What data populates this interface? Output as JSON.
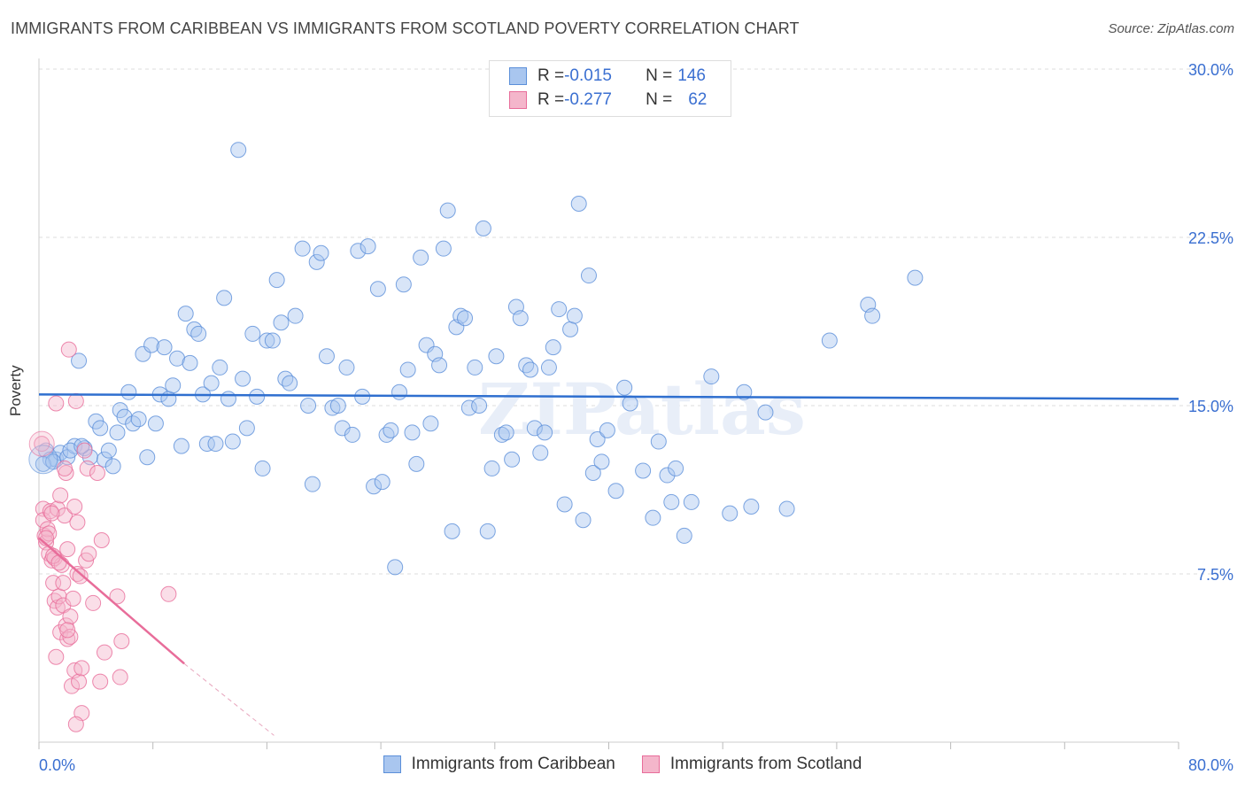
{
  "header": {
    "title": "IMMIGRANTS FROM CARIBBEAN VS IMMIGRANTS FROM SCOTLAND POVERTY CORRELATION CHART",
    "source": "Source: ZipAtlas.com"
  },
  "legend_top": {
    "rows": [
      {
        "r_label": "R = ",
        "r_value": "-0.015",
        "n_label": "N = ",
        "n_value": "146"
      },
      {
        "r_label": "R = ",
        "r_value": "-0.277",
        "n_label": "N = ",
        "n_value": "62"
      }
    ]
  },
  "colors": {
    "caribbean": "#5b8fd9",
    "caribbean_fill": "#a9c6ef",
    "scotland": "#e86d9a",
    "scotland_fill": "#f4b6cb",
    "axis_text": "#3a6fd1",
    "grid": "#dddddd"
  },
  "chart_data": {
    "type": "scatter",
    "title": "IMMIGRANTS FROM CARIBBEAN VS IMMIGRANTS FROM SCOTLAND POVERTY CORRELATION CHART",
    "xlabel": "",
    "ylabel": "Poverty",
    "xlim": [
      0,
      80
    ],
    "ylim": [
      0,
      30
    ],
    "x_tick_labels": [
      "0.0%",
      "80.0%"
    ],
    "y_ticks": [
      7.5,
      15.0,
      22.5,
      30.0
    ],
    "y_tick_labels": [
      "7.5%",
      "15.0%",
      "22.5%",
      "30.0%"
    ],
    "grid": true,
    "legend_placement": "bottom-center",
    "series": [
      {
        "name": "Immigrants from Caribbean",
        "r": -0.015,
        "n": 146,
        "trend": {
          "x0": 0,
          "y0": 15.5,
          "x1": 80,
          "y1": 15.3
        },
        "points": [
          [
            0.5,
            13.0
          ],
          [
            0.8,
            12.6
          ],
          [
            1.2,
            12.6
          ],
          [
            1.5,
            12.9
          ],
          [
            2.0,
            12.7
          ],
          [
            2.5,
            13.2
          ],
          [
            2.8,
            17.0
          ],
          [
            3.2,
            13.1
          ],
          [
            3.6,
            12.7
          ],
          [
            4.0,
            14.3
          ],
          [
            4.3,
            14.0
          ],
          [
            4.6,
            12.6
          ],
          [
            4.9,
            13.0
          ],
          [
            5.2,
            12.3
          ],
          [
            5.5,
            13.8
          ],
          [
            5.7,
            14.8
          ],
          [
            6.0,
            14.5
          ],
          [
            6.3,
            15.6
          ],
          [
            6.6,
            14.2
          ],
          [
            7.0,
            14.4
          ],
          [
            7.3,
            17.3
          ],
          [
            7.6,
            12.7
          ],
          [
            7.9,
            17.7
          ],
          [
            8.2,
            14.2
          ],
          [
            8.5,
            15.5
          ],
          [
            8.8,
            17.6
          ],
          [
            9.1,
            15.3
          ],
          [
            9.4,
            15.9
          ],
          [
            9.7,
            17.1
          ],
          [
            10.0,
            13.2
          ],
          [
            10.3,
            19.1
          ],
          [
            10.6,
            16.9
          ],
          [
            10.9,
            18.4
          ],
          [
            11.2,
            18.2
          ],
          [
            11.5,
            15.5
          ],
          [
            11.8,
            13.3
          ],
          [
            12.1,
            16.0
          ],
          [
            12.4,
            13.3
          ],
          [
            12.7,
            16.7
          ],
          [
            13.0,
            19.8
          ],
          [
            13.3,
            15.3
          ],
          [
            13.6,
            13.4
          ],
          [
            14.0,
            26.4
          ],
          [
            14.3,
            16.2
          ],
          [
            14.6,
            14.0
          ],
          [
            15.0,
            18.2
          ],
          [
            15.3,
            15.4
          ],
          [
            15.7,
            12.2
          ],
          [
            16.0,
            17.9
          ],
          [
            16.4,
            17.9
          ],
          [
            16.7,
            20.6
          ],
          [
            17.0,
            18.7
          ],
          [
            17.3,
            16.2
          ],
          [
            17.6,
            16.0
          ],
          [
            18.0,
            19.0
          ],
          [
            18.5,
            22.0
          ],
          [
            18.9,
            15.0
          ],
          [
            19.2,
            11.5
          ],
          [
            19.5,
            21.4
          ],
          [
            19.8,
            21.8
          ],
          [
            20.2,
            17.2
          ],
          [
            20.6,
            14.9
          ],
          [
            21.0,
            15.0
          ],
          [
            21.3,
            14.0
          ],
          [
            21.6,
            16.7
          ],
          [
            22.0,
            13.7
          ],
          [
            22.4,
            21.9
          ],
          [
            22.7,
            15.4
          ],
          [
            23.1,
            22.1
          ],
          [
            23.5,
            11.4
          ],
          [
            23.8,
            20.2
          ],
          [
            24.1,
            11.6
          ],
          [
            24.4,
            13.7
          ],
          [
            24.7,
            13.9
          ],
          [
            25.0,
            7.8
          ],
          [
            25.3,
            15.6
          ],
          [
            25.6,
            20.4
          ],
          [
            25.9,
            16.6
          ],
          [
            26.2,
            13.8
          ],
          [
            26.5,
            12.4
          ],
          [
            26.8,
            21.6
          ],
          [
            27.2,
            17.7
          ],
          [
            27.5,
            14.2
          ],
          [
            27.8,
            17.3
          ],
          [
            28.1,
            16.8
          ],
          [
            28.4,
            22.0
          ],
          [
            28.7,
            23.7
          ],
          [
            29.0,
            9.4
          ],
          [
            29.3,
            18.5
          ],
          [
            29.6,
            19.0
          ],
          [
            29.9,
            18.9
          ],
          [
            30.2,
            14.9
          ],
          [
            30.6,
            16.7
          ],
          [
            30.9,
            15.0
          ],
          [
            31.2,
            22.9
          ],
          [
            31.5,
            9.4
          ],
          [
            31.8,
            12.2
          ],
          [
            32.1,
            17.2
          ],
          [
            32.5,
            13.7
          ],
          [
            32.8,
            13.8
          ],
          [
            33.2,
            12.6
          ],
          [
            33.5,
            19.4
          ],
          [
            33.8,
            18.9
          ],
          [
            34.2,
            16.8
          ],
          [
            34.5,
            16.6
          ],
          [
            34.8,
            14.0
          ],
          [
            35.2,
            12.9
          ],
          [
            35.5,
            13.8
          ],
          [
            35.8,
            16.7
          ],
          [
            36.1,
            17.6
          ],
          [
            36.5,
            19.3
          ],
          [
            36.9,
            10.6
          ],
          [
            37.3,
            18.4
          ],
          [
            37.6,
            19.0
          ],
          [
            37.9,
            24.0
          ],
          [
            38.2,
            9.9
          ],
          [
            38.6,
            20.8
          ],
          [
            38.9,
            12.0
          ],
          [
            39.2,
            13.5
          ],
          [
            39.5,
            12.5
          ],
          [
            39.9,
            13.9
          ],
          [
            40.5,
            11.2
          ],
          [
            41.1,
            15.8
          ],
          [
            41.5,
            15.1
          ],
          [
            42.4,
            12.1
          ],
          [
            43.1,
            10.0
          ],
          [
            43.5,
            13.4
          ],
          [
            44.1,
            11.9
          ],
          [
            44.4,
            10.7
          ],
          [
            44.7,
            12.2
          ],
          [
            45.3,
            9.2
          ],
          [
            45.8,
            10.7
          ],
          [
            47.2,
            16.3
          ],
          [
            48.5,
            10.2
          ],
          [
            49.5,
            15.6
          ],
          [
            50.0,
            10.5
          ],
          [
            51.0,
            14.7
          ],
          [
            52.5,
            10.4
          ],
          [
            55.5,
            17.9
          ],
          [
            58.2,
            19.5
          ],
          [
            58.5,
            19.0
          ],
          [
            61.5,
            20.7
          ],
          [
            0.3,
            12.4
          ],
          [
            1.0,
            12.5
          ],
          [
            2.2,
            13.0
          ],
          [
            3.0,
            13.2
          ]
        ]
      },
      {
        "name": "Immigrants from Scotland",
        "r": -0.277,
        "n": 62,
        "trend": {
          "x0": 0,
          "y0": 9.1,
          "x1": 10.2,
          "y1": 3.5
        },
        "trend_extension": {
          "x1": 16.5,
          "y1": 0.3
        },
        "points": [
          [
            0.2,
            13.3
          ],
          [
            0.3,
            10.4
          ],
          [
            0.3,
            9.9
          ],
          [
            0.4,
            9.2
          ],
          [
            0.5,
            8.9
          ],
          [
            0.6,
            9.5
          ],
          [
            0.7,
            8.4
          ],
          [
            0.8,
            10.3
          ],
          [
            0.9,
            8.1
          ],
          [
            1.0,
            7.1
          ],
          [
            1.1,
            6.3
          ],
          [
            1.1,
            8.2
          ],
          [
            1.2,
            3.8
          ],
          [
            1.3,
            10.4
          ],
          [
            1.3,
            6.0
          ],
          [
            1.4,
            6.5
          ],
          [
            1.5,
            11.0
          ],
          [
            1.5,
            4.9
          ],
          [
            1.6,
            7.9
          ],
          [
            1.7,
            7.1
          ],
          [
            1.7,
            6.1
          ],
          [
            1.8,
            10.1
          ],
          [
            1.9,
            5.2
          ],
          [
            1.9,
            12.0
          ],
          [
            2.0,
            8.6
          ],
          [
            2.0,
            4.6
          ],
          [
            2.1,
            17.5
          ],
          [
            2.2,
            4.7
          ],
          [
            2.2,
            5.6
          ],
          [
            2.3,
            2.5
          ],
          [
            2.4,
            6.4
          ],
          [
            2.5,
            3.2
          ],
          [
            2.5,
            10.5
          ],
          [
            2.6,
            15.2
          ],
          [
            2.7,
            9.8
          ],
          [
            2.7,
            7.5
          ],
          [
            2.8,
            2.7
          ],
          [
            2.9,
            7.4
          ],
          [
            3.0,
            3.3
          ],
          [
            3.0,
            1.3
          ],
          [
            2.6,
            0.8
          ],
          [
            3.2,
            13.0
          ],
          [
            3.3,
            8.1
          ],
          [
            3.4,
            12.2
          ],
          [
            3.5,
            8.4
          ],
          [
            3.8,
            6.2
          ],
          [
            4.1,
            12.0
          ],
          [
            4.3,
            2.7
          ],
          [
            4.4,
            9.0
          ],
          [
            4.6,
            4.0
          ],
          [
            5.5,
            6.5
          ],
          [
            5.7,
            2.9
          ],
          [
            5.8,
            4.5
          ],
          [
            9.1,
            6.6
          ],
          [
            1.2,
            15.1
          ],
          [
            0.7,
            9.3
          ],
          [
            1.0,
            8.3
          ],
          [
            1.8,
            12.2
          ],
          [
            0.5,
            9.1
          ],
          [
            0.9,
            10.2
          ],
          [
            1.4,
            8.0
          ],
          [
            2.0,
            5.0
          ]
        ]
      }
    ]
  },
  "axis": {
    "x_left": "0.0%",
    "x_right": "80.0%",
    "y_title": "Poverty",
    "y_labels": [
      "30.0%",
      "22.5%",
      "15.0%",
      "7.5%"
    ]
  },
  "watermark": "ZIPatlas",
  "bottom_legend": {
    "items": [
      "Immigrants from Caribbean",
      "Immigrants from Scotland"
    ]
  }
}
